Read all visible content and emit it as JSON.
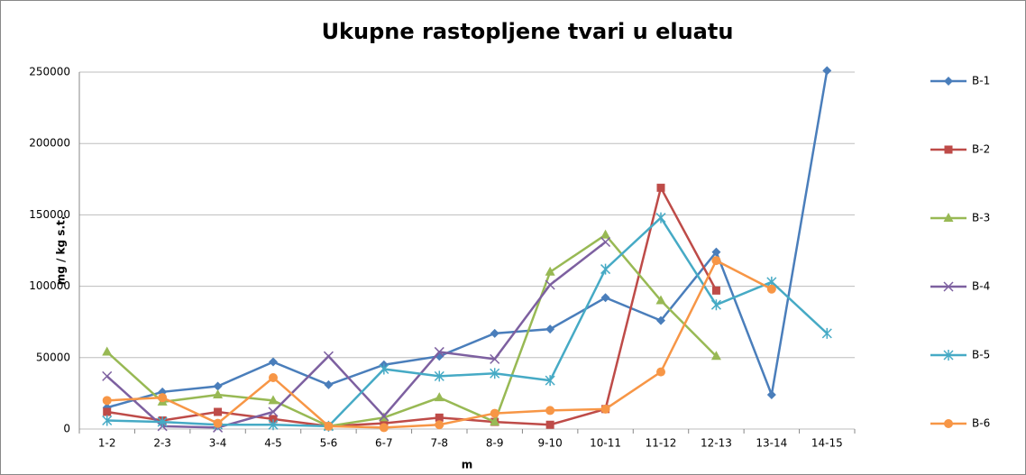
{
  "chart_data": {
    "type": "line",
    "title": "Ukupne rastopljene tvari u eluatu",
    "x_label": "m",
    "y_label": "mg / kg s.t.",
    "categories": [
      "1-2",
      "2-3",
      "3-4",
      "4-5",
      "5-6",
      "6-7",
      "7-8",
      "8-9",
      "9-10",
      "10-11",
      "11-12",
      "12-13",
      "13-14",
      "14-15"
    ],
    "series": [
      {
        "name": "B-1",
        "color": "#4a7ebb",
        "marker": "diamond",
        "values": [
          15000,
          26000,
          30000,
          47000,
          31000,
          45000,
          51000,
          67000,
          70000,
          92000,
          76000,
          124000,
          24000,
          251000
        ]
      },
      {
        "name": "B-2",
        "color": "#be4b48",
        "marker": "square",
        "values": [
          12000,
          6000,
          12000,
          7000,
          2000,
          4000,
          8000,
          5000,
          3000,
          14000,
          169000,
          97000,
          null,
          null
        ]
      },
      {
        "name": "B-3",
        "color": "#98b954",
        "marker": "triangle",
        "values": [
          54000,
          19000,
          24000,
          20000,
          2000,
          8000,
          22000,
          5000,
          110000,
          136000,
          90000,
          51000,
          null,
          null
        ]
      },
      {
        "name": "B-4",
        "color": "#7d60a0",
        "marker": "x",
        "values": [
          37000,
          2000,
          1000,
          12000,
          51000,
          9000,
          54000,
          49000,
          101000,
          131000,
          null,
          null,
          null,
          null
        ]
      },
      {
        "name": "B-5",
        "color": "#46aac5",
        "marker": "star",
        "values": [
          6000,
          5000,
          3000,
          3000,
          2000,
          42000,
          37000,
          39000,
          34000,
          112000,
          148000,
          87000,
          103000,
          67000
        ]
      },
      {
        "name": "B-6",
        "color": "#f79646",
        "marker": "circle",
        "values": [
          20000,
          22000,
          4000,
          36000,
          2000,
          1000,
          3000,
          11000,
          13000,
          14000,
          40000,
          118000,
          98000,
          null
        ]
      }
    ],
    "ylim": [
      0,
      250000
    ],
    "yticks": [
      0,
      50000,
      100000,
      150000,
      200000,
      250000
    ],
    "grid": true,
    "legend": "right"
  }
}
